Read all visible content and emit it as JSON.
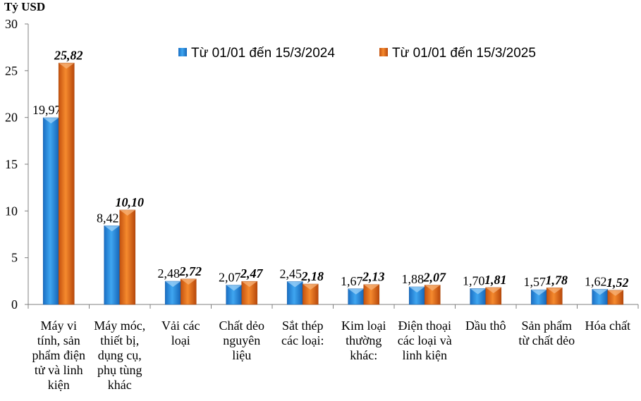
{
  "chart_data": {
    "type": "bar",
    "ylabel": "Tỷ USD",
    "ylim": [
      0,
      30
    ],
    "yticks": [
      "0",
      "5",
      "10",
      "15",
      "20",
      "25",
      "30"
    ],
    "categories": [
      "Máy vi tính, sản phẩm điện tử và linh kiện",
      "Máy móc, thiết bị, dụng cụ, phụ tùng khác",
      "Vải các loại",
      "Chất dẻo nguyên liệu",
      "Sắt thép các loại:",
      "Kim loại thường khác:",
      "Điện thoại các loại và linh kiện",
      "Dầu thô",
      "Sản phẩm từ chất dẻo",
      "Hóa chất"
    ],
    "series": [
      {
        "name": "Từ 01/01 đến 15/3/2024",
        "color": "#2e8fe0",
        "values": [
          19.97,
          8.42,
          2.48,
          2.07,
          2.45,
          1.67,
          1.88,
          1.7,
          1.57,
          1.62
        ],
        "labels": [
          "19,97",
          "8,42",
          "2,48",
          "2,07",
          "2,45",
          "1,67",
          "1,88",
          "1,70",
          "1,57",
          "1,62"
        ]
      },
      {
        "name": "Từ 01/01 đến 15/3/2025",
        "color": "#e8701f",
        "values": [
          25.82,
          10.1,
          2.72,
          2.47,
          2.18,
          2.13,
          2.07,
          1.81,
          1.78,
          1.52
        ],
        "labels": [
          "25,82",
          "10,10",
          "2,72",
          "2,47",
          "2,18",
          "2,13",
          "2,07",
          "1,81",
          "1,78",
          "1,52"
        ]
      }
    ],
    "legend_position": "top-right",
    "grid": false
  }
}
